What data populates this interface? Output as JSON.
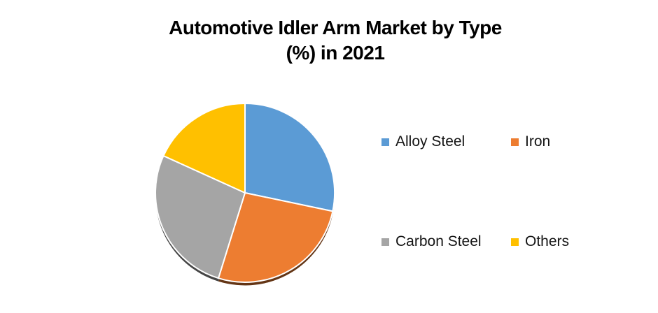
{
  "page": {
    "background": "#ffffff"
  },
  "title": {
    "line1": "Automotive Idler Arm Market by Type",
    "line2": "(%) in 2021"
  },
  "legend": {
    "items": [
      {
        "label": "Alloy Steel",
        "color": "#5B9BD5"
      },
      {
        "label": "Iron",
        "color": "#ED7D31"
      },
      {
        "label": "Carbon Steel",
        "color": "#A5A5A5"
      },
      {
        "label": "Others",
        "color": "#FFC000"
      }
    ]
  },
  "chart_data": {
    "type": "pie",
    "title": "Automotive Idler Arm Market by Type (%) in 2021",
    "categories": [
      "Alloy Steel",
      "Iron",
      "Carbon Steel",
      "Others"
    ],
    "values": [
      28.3,
      26.5,
      27.0,
      18.2
    ],
    "unit": "%",
    "colors": [
      "#5B9BD5",
      "#ED7D31",
      "#A5A5A5",
      "#FFC000"
    ],
    "start_angle_deg": 0,
    "direction": "clockwise",
    "legend_position": "right-two-column",
    "data_labels": false,
    "effect": "subtle-3d-bottom-shadow"
  }
}
